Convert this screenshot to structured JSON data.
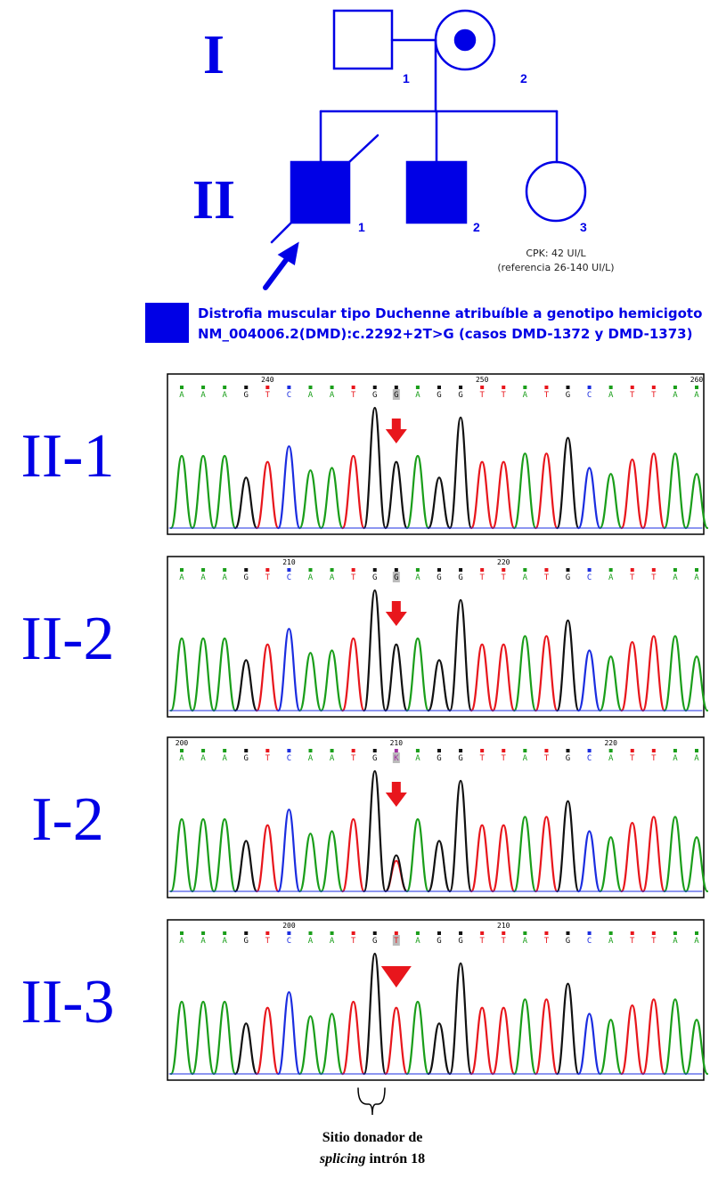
{
  "pedigree": {
    "generations": [
      "I",
      "II"
    ],
    "individuals": [
      {
        "id": "1",
        "generation": "I"
      },
      {
        "id": "2",
        "generation": "I"
      },
      {
        "id": "1",
        "generation": "II"
      },
      {
        "id": "2",
        "generation": "II"
      },
      {
        "id": "3",
        "generation": "II"
      }
    ],
    "note": [
      "CPK: 42 UI/L",
      "(referencia 26-140 UI/L)"
    ]
  },
  "legend": {
    "lines": [
      "Distrofia muscular tipo Duchenne atribuíble a genotipo hemicigoto",
      "NM_004006.2(DMD):c.2292+2T>G (casos DMD-1372 y DMD-1373)"
    ]
  },
  "chromatograms": [
    {
      "label": "II-1",
      "positions": [
        240,
        250,
        260
      ],
      "bases": [
        "A",
        "A",
        "A",
        "G",
        "T",
        "C",
        "A",
        "A",
        "T",
        "G",
        "G",
        "A",
        "G",
        "G",
        "T",
        "T",
        "A",
        "T",
        "G",
        "C",
        "A",
        "T",
        "T",
        "A",
        "A"
      ],
      "marker": "arrow"
    },
    {
      "label": "II-2",
      "positions": [
        210,
        220
      ],
      "bases": [
        "A",
        "A",
        "A",
        "G",
        "T",
        "C",
        "A",
        "A",
        "T",
        "G",
        "G",
        "A",
        "G",
        "G",
        "T",
        "T",
        "A",
        "T",
        "G",
        "C",
        "A",
        "T",
        "T",
        "A",
        "A"
      ],
      "marker": "arrow"
    },
    {
      "label": "I-2",
      "positions": [
        200,
        210,
        220
      ],
      "bases": [
        "A",
        "A",
        "A",
        "G",
        "T",
        "C",
        "A",
        "A",
        "T",
        "G",
        "K",
        "A",
        "G",
        "G",
        "T",
        "T",
        "A",
        "T",
        "G",
        "C",
        "A",
        "T",
        "T",
        "A",
        "A"
      ],
      "marker": "arrow"
    },
    {
      "label": "II-3",
      "positions": [
        200,
        210
      ],
      "bases": [
        "A",
        "A",
        "A",
        "G",
        "T",
        "C",
        "A",
        "A",
        "T",
        "G",
        "T",
        "A",
        "G",
        "G",
        "T",
        "T",
        "A",
        "T",
        "G",
        "C",
        "A",
        "T",
        "T",
        "A",
        "A"
      ],
      "marker": "triangle"
    }
  ],
  "caption": {
    "line1": "Sitio donador de",
    "italic": "splicing",
    "rest": "intrón 18"
  }
}
